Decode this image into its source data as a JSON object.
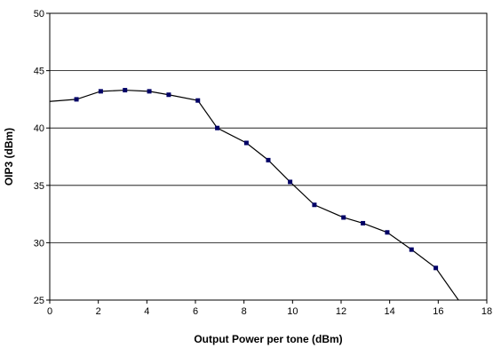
{
  "chart_data": {
    "type": "line",
    "title": "",
    "xlabel": "Output Power per tone (dBm)",
    "ylabel": "OIP3 (dBm)",
    "xlim": [
      0,
      18
    ],
    "ylim": [
      25,
      50
    ],
    "xticks": [
      0,
      2,
      4,
      6,
      8,
      10,
      12,
      14,
      16,
      18
    ],
    "yticks": [
      25,
      30,
      35,
      40,
      45,
      50
    ],
    "grid": "horizontal",
    "legend": "none",
    "colors": {
      "line": "#000000",
      "marker": "#000066",
      "grid": "#000000",
      "background": "#ffffff"
    },
    "series": [
      {
        "x": [
          -0.1,
          1.1,
          2.1,
          3.1,
          4.1,
          4.9,
          6.1,
          6.9,
          8.1,
          9.0,
          9.9,
          10.9,
          12.1,
          12.9,
          13.9,
          14.9,
          15.9,
          16.9
        ],
        "y": [
          42.3,
          42.5,
          43.2,
          43.3,
          43.2,
          42.9,
          42.4,
          40.0,
          38.7,
          37.2,
          35.3,
          33.3,
          32.2,
          31.7,
          30.9,
          29.4,
          27.8,
          24.8
        ]
      }
    ]
  }
}
